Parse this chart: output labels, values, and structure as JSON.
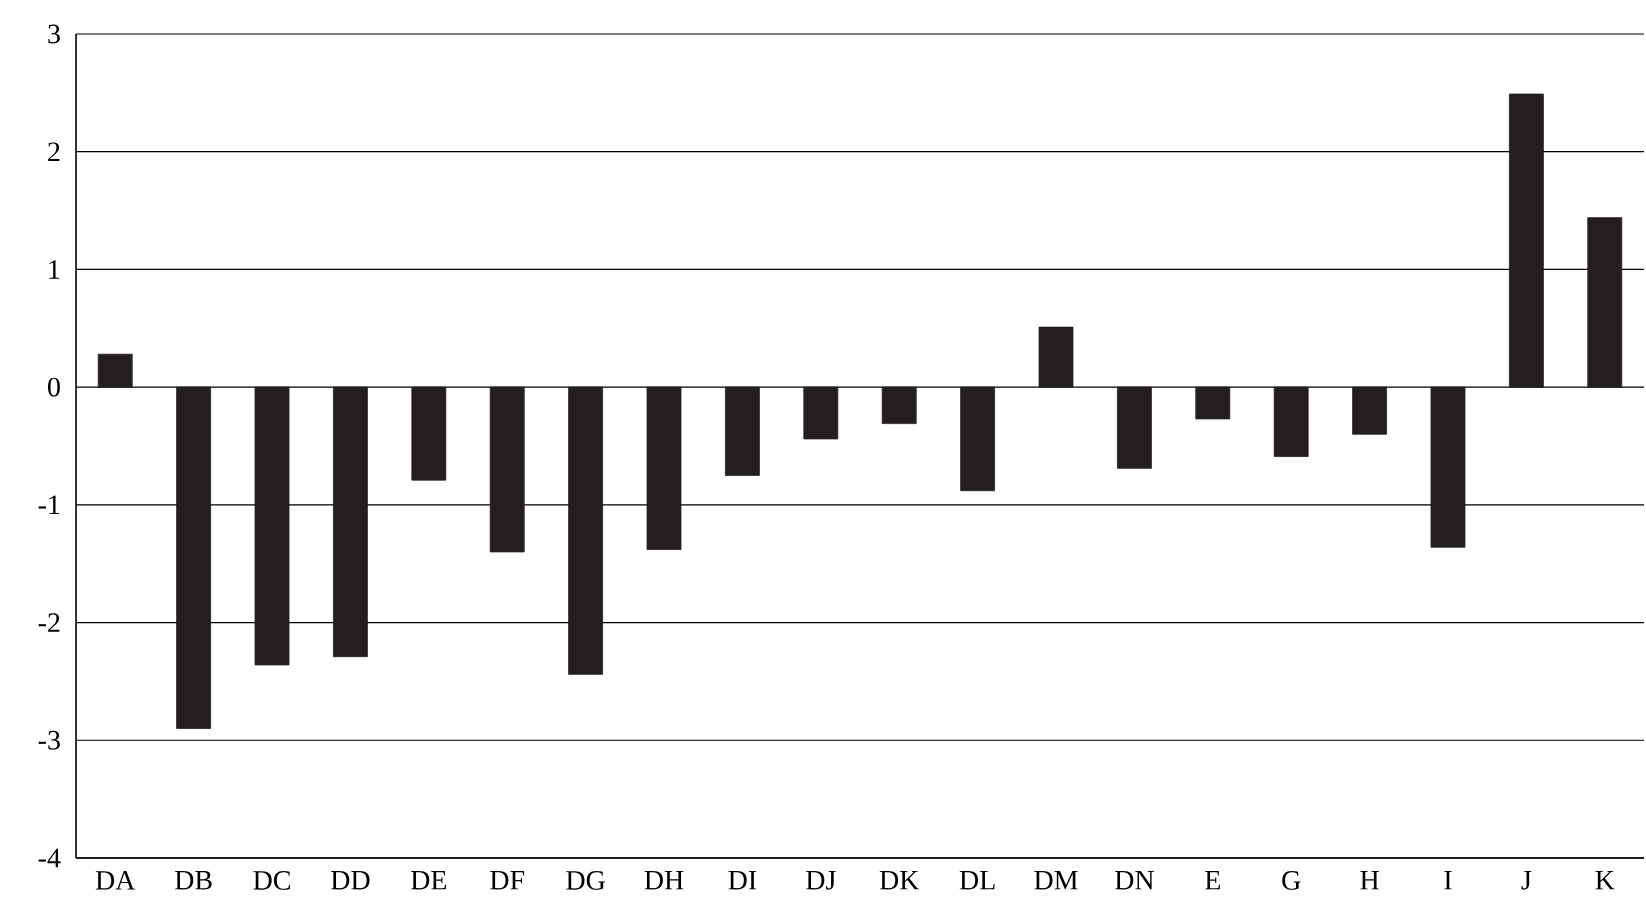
{
  "chart_data": {
    "type": "bar",
    "categories": [
      "DA",
      "DB",
      "DC",
      "DD",
      "DE",
      "DF",
      "DG",
      "DH",
      "DI",
      "DJ",
      "DK",
      "DL",
      "DM",
      "DN",
      "E",
      "G",
      "H",
      "I",
      "J",
      "K"
    ],
    "values": [
      0.28,
      -2.9,
      -2.36,
      -2.29,
      -0.79,
      -1.4,
      -2.44,
      -1.38,
      -0.75,
      -0.44,
      -0.31,
      -0.88,
      0.51,
      -0.69,
      -0.27,
      -0.59,
      -0.4,
      -1.36,
      2.49,
      1.44
    ],
    "color": "#231f20",
    "ylim": [
      -4,
      3
    ],
    "yticks": [
      -4,
      -3,
      -2,
      -1,
      0,
      1,
      2,
      3
    ],
    "grid": "y"
  }
}
